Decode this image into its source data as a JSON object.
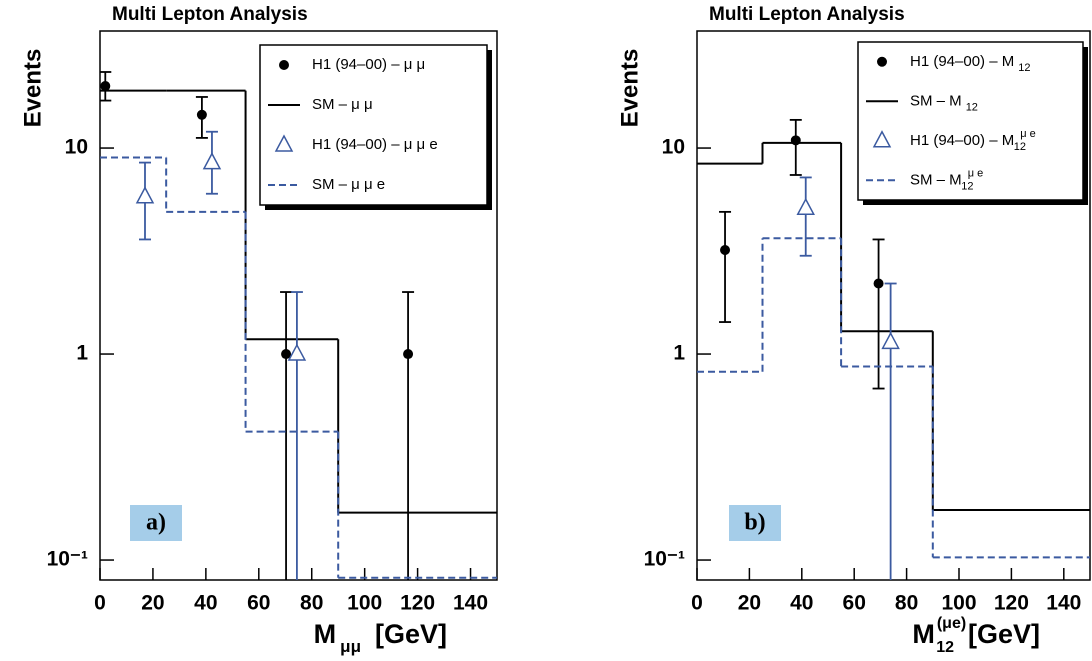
{
  "chart_data": [
    {
      "type": "histogram",
      "title": "Multi Lepton Analysis",
      "y_label": "Events",
      "x_label": {
        "main": "M",
        "sub": "μμ",
        "unit": "[GeV]"
      },
      "panel_label": "a)",
      "xlim": [
        0,
        150
      ],
      "xticks": [
        0,
        20,
        40,
        60,
        80,
        100,
        120,
        140
      ],
      "ylim": [
        0.08,
        37
      ],
      "log_y": true,
      "yticks": [
        {
          "value": 0.1,
          "label": "10⁻¹"
        },
        1,
        10
      ],
      "legend": "upper right",
      "series": [
        {
          "name": "H1 (94–00) – μ μ",
          "kind": "errorbar",
          "marker": "dot",
          "color": "#000000",
          "x": [
            2,
            38.5,
            70.3,
            116.4
          ],
          "values": [
            20,
            14.5,
            1,
            1
          ],
          "low": [
            17,
            11.2,
            0,
            0
          ],
          "high": [
            23.4,
            17.7,
            2,
            2
          ]
        },
        {
          "name": "SM – μ μ",
          "kind": "step",
          "dash": false,
          "color": "#000000",
          "bins": [
            0,
            25,
            55,
            90,
            150
          ],
          "values": [
            19,
            19,
            1.18,
            0.17
          ]
        },
        {
          "name": "H1 (94–00) – μ μ e",
          "kind": "errorbar",
          "marker": "triangle",
          "color": "#3b5aa0",
          "x": [
            17,
            42.3,
            74.4
          ],
          "values": [
            5.8,
            8.5,
            1
          ],
          "low": [
            3.6,
            6,
            0
          ],
          "high": [
            8.5,
            12,
            2
          ]
        },
        {
          "name": "SM – μ μ e",
          "kind": "step",
          "dash": true,
          "color": "#3b5aa0",
          "bins": [
            0,
            25,
            55,
            90,
            150
          ],
          "values": [
            9,
            4.9,
            0.42,
            0.082
          ]
        }
      ]
    },
    {
      "type": "histogram",
      "title": "Multi Lepton Analysis",
      "y_label": "Events",
      "x_label": {
        "main": "M",
        "sub": "12",
        "sup": "(μe)",
        "unit": "[GeV]"
      },
      "panel_label": "b)",
      "xlim": [
        0,
        150
      ],
      "xticks": [
        0,
        20,
        40,
        60,
        80,
        100,
        120,
        140
      ],
      "ylim": [
        0.08,
        37
      ],
      "log_y": true,
      "yticks": [
        {
          "value": 0.1,
          "label": "10⁻¹"
        },
        1,
        10
      ],
      "legend": "upper right",
      "series": [
        {
          "name": "H1 (94–00) –  M",
          "name_sub": "12",
          "kind": "errorbar",
          "marker": "dot",
          "color": "#000000",
          "x": [
            10.7,
            37.7,
            69.3
          ],
          "values": [
            3.2,
            10.9,
            2.2
          ],
          "low": [
            1.43,
            7.4,
            0.68
          ],
          "high": [
            4.9,
            13.7,
            3.6
          ]
        },
        {
          "name": "SM –  M",
          "name_sub": "12",
          "kind": "step",
          "dash": false,
          "color": "#000000",
          "bins": [
            0,
            25,
            55,
            90,
            150
          ],
          "values": [
            8.4,
            10.6,
            1.29,
            0.175
          ]
        },
        {
          "name": "H1 (94–00) –  M",
          "name_sub": "12",
          "name_sup": "μ e",
          "kind": "errorbar",
          "marker": "triangle",
          "color": "#3b5aa0",
          "x": [
            41.5,
            73.9
          ],
          "values": [
            5.1,
            1.14
          ],
          "low": [
            3,
            0
          ],
          "high": [
            7.2,
            2.2
          ]
        },
        {
          "name": "SM –  M",
          "name_sub": "12",
          "name_sup": "μ e",
          "kind": "step",
          "dash": true,
          "color": "#3b5aa0",
          "bins": [
            0,
            25,
            55,
            90,
            150
          ],
          "values": [
            0.82,
            3.65,
            0.87,
            0.103
          ]
        }
      ]
    }
  ]
}
